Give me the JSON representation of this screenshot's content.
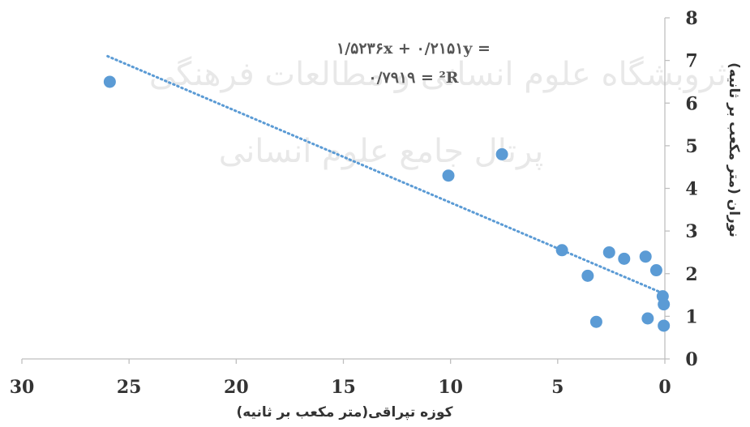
{
  "chart_data": {
    "type": "scatter",
    "xlabel": "کوزه تپراقی(متر مکعب بر ثانیه)",
    "ylabel": "نوران (متر مکعب بر ثانیه)",
    "x_reversed": true,
    "xlim": [
      0,
      30
    ],
    "ylim": [
      0,
      8
    ],
    "x_ticks": [
      "0",
      "5",
      "10",
      "15",
      "20",
      "25",
      "30"
    ],
    "y_ticks": [
      "0",
      "1",
      "2",
      "3",
      "4",
      "5",
      "6",
      "7",
      "8"
    ],
    "points": {
      "x": [
        25.9,
        7.6,
        10.1,
        4.8,
        3.6,
        3.2,
        2.6,
        1.9,
        0.9,
        0.8,
        0.4,
        0.1,
        0.05,
        0.05
      ],
      "y": [
        6.5,
        4.8,
        4.3,
        2.55,
        1.95,
        0.87,
        2.5,
        2.35,
        2.4,
        0.95,
        2.08,
        1.47,
        1.28,
        0.78
      ]
    },
    "trendline": {
      "style": "dotted",
      "x": [
        26.0,
        0.0
      ],
      "y": [
        7.1,
        1.52
      ]
    },
    "equation_line1": "۱/۵۲۳۶x + ۰/۲۱۵۱y =",
    "equation_line2": "۰/۷۹۱۹ = ²R",
    "grid": false,
    "legend": "none",
    "watermark_line1": "ثروبشگاه علوم انسانی و مطالعات فرهنگی",
    "watermark_line2": "پرتال جامع علوم انسانی",
    "colors": {
      "point": "#5b9bd5",
      "trendline": "#5b9bd5",
      "axis": "#bfbfbf",
      "text": "#333333"
    }
  }
}
